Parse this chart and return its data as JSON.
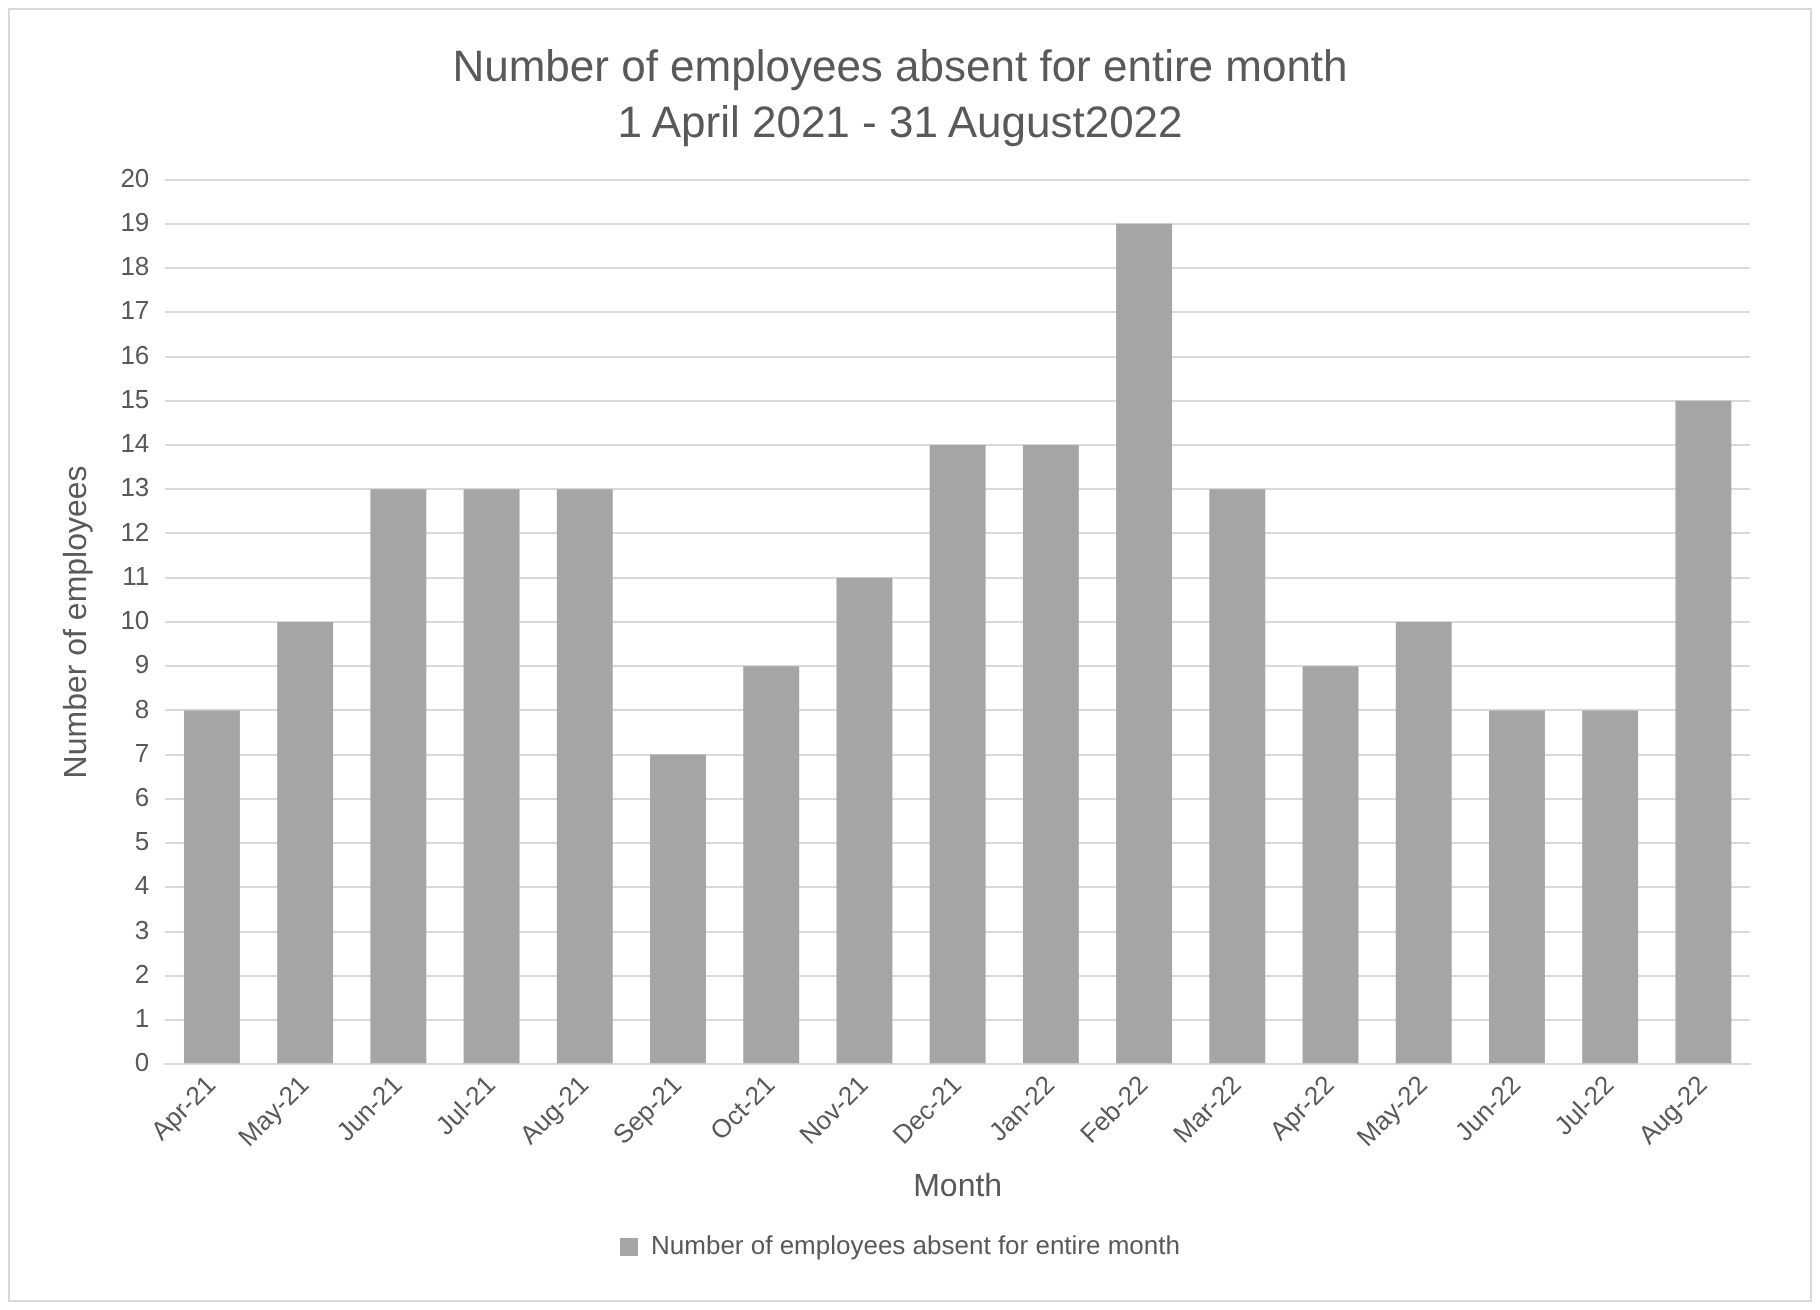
{
  "chart_data": {
    "type": "bar",
    "title": "Number of employees absent for entire month",
    "subtitle": "1 April 2021 - 31 August2022",
    "xlabel": "Month",
    "ylabel": "Number of employees",
    "categories": [
      "Apr-21",
      "May-21",
      "Jun-21",
      "Jul-21",
      "Aug-21",
      "Sep-21",
      "Oct-21",
      "Nov-21",
      "Dec-21",
      "Jan-22",
      "Feb-22",
      "Mar-22",
      "Apr-22",
      "May-22",
      "Jun-22",
      "Jul-22",
      "Aug-22"
    ],
    "series": [
      {
        "name": "Number of employees absent for entire month",
        "color": "#a5a5a5",
        "values": [
          8,
          10,
          13,
          13,
          13,
          7,
          9,
          11,
          14,
          14,
          19,
          13,
          9,
          10,
          8,
          8,
          15
        ]
      }
    ],
    "ylim": [
      0,
      20
    ],
    "yticks": [
      0,
      1,
      2,
      3,
      4,
      5,
      6,
      7,
      8,
      9,
      10,
      11,
      12,
      13,
      14,
      15,
      16,
      17,
      18,
      19,
      20
    ],
    "grid": "y",
    "legend": "bottom"
  }
}
